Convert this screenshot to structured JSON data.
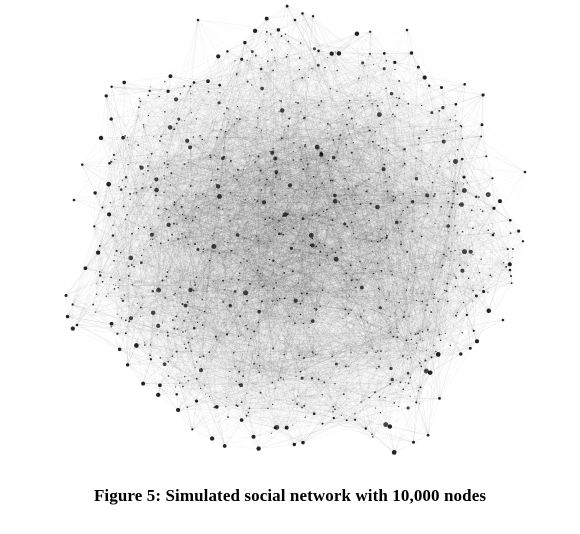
{
  "figure": {
    "caption": "Figure 5: Simulated social network with 10,000 nodes",
    "colors": {
      "edge": "#000000",
      "node": "#000000",
      "background": "#ffffff"
    }
  }
}
